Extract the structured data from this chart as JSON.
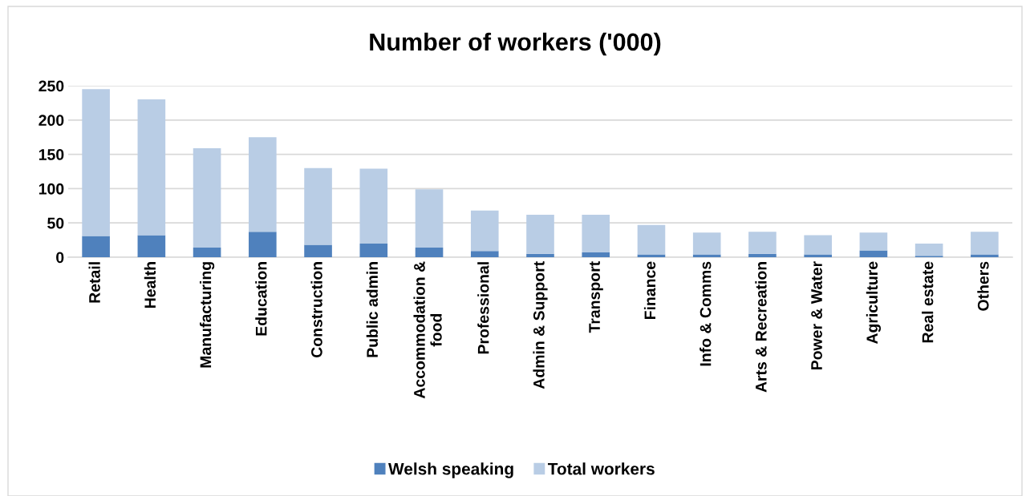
{
  "chart_data": {
    "type": "bar",
    "title": "Number of workers ('000)",
    "categories": [
      "Retail",
      "Health",
      "Manufacturing",
      "Education",
      "Construction",
      "Public admin",
      "Accommodation &\nfood",
      "Professional",
      "Admin & Support",
      "Transport",
      "Finance",
      "Info & Comms",
      "Arts & Recreation",
      "Power & Water",
      "Agriculture",
      "Real estate",
      "Others"
    ],
    "stacked": true,
    "series": [
      {
        "name": "Welsh speaking",
        "color": "#4f81bd",
        "values": [
          31,
          32,
          14,
          37,
          18,
          20,
          14,
          9,
          5,
          7,
          4,
          4,
          5,
          4,
          10,
          2,
          4
        ]
      },
      {
        "name": "Total workers",
        "color": "#b9cde5",
        "values": [
          214,
          198,
          145,
          138,
          112,
          109,
          85,
          59,
          57,
          55,
          43,
          32,
          32,
          28,
          26,
          18,
          33
        ]
      }
    ],
    "ylim": [
      0,
      250
    ],
    "yticks": [
      0,
      50,
      100,
      150,
      200,
      250
    ],
    "grid": "y",
    "legend": "bottom"
  }
}
